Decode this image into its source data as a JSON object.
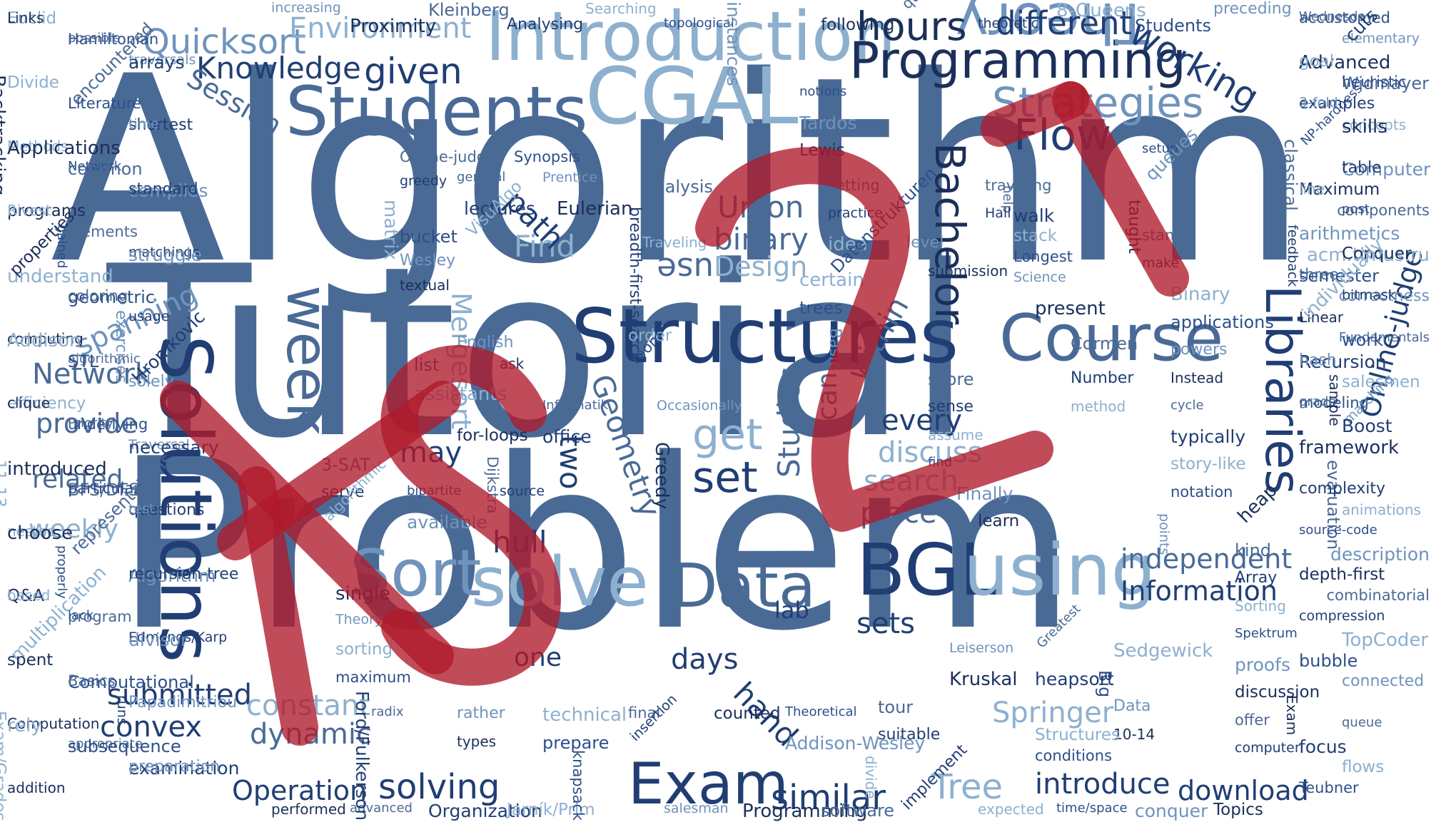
{
  "cloud": {
    "words": [
      "Algorithm",
      "Tutorial",
      "Problem",
      "Introduction",
      "CGAL",
      "Structures",
      "Students",
      "Programming",
      "Solutions",
      "Course",
      "Exam",
      "solve",
      "Sort",
      "Data",
      "BGL",
      "using",
      "Libraries",
      "Bachelor",
      "Theory",
      "Flow",
      "Strategies",
      "hours",
      "different",
      "working",
      "Quicksort",
      "Environment",
      "Knowledge",
      "given",
      "Session",
      "Union",
      "binary",
      "Design",
      "Find",
      "use",
      "path",
      "spanning",
      "Network",
      "provide",
      "related",
      "weekly",
      "week",
      "Mergesort",
      "Geometry",
      "two",
      "Studies",
      "can",
      "get",
      "set",
      "every",
      "discuss",
      "search",
      "place",
      "may",
      "hull",
      "submitted",
      "convex",
      "constant",
      "dynamic",
      "Operation",
      "solving",
      "similar",
      "Tree",
      "introduce",
      "download",
      "independent",
      "Information",
      "Springer",
      "lab",
      "sets",
      "days",
      "hand",
      "one",
      "Online-judge",
      "within",
      "Euclid",
      "Hamiltonian",
      "traversals",
      "Backtracking",
      "encountered",
      "shortest",
      "Methods",
      "Network",
      "compiles",
      "programs",
      "Elements",
      "matchings",
      "understand",
      "geometric",
      "exercises",
      "computing",
      "algorithmic",
      "Hromkovic",
      "efficiency",
      "underlying",
      "Traversal",
      "introduced",
      "BFS/DFS",
      "questions",
      "nested",
      "properly",
      "Algorithm",
      "Q&A",
      "program",
      "Edmonds/Karp",
      "multiplication",
      "Computational",
      "Papadimitriou",
      "Computation",
      "appropriate",
      "examination",
      "Exam/Grades",
      "accustomed",
      "elementary",
      "Advanced",
      "Widmayer",
      "examples",
      "concepts",
      "NP-hardness",
      "Computer",
      "Maximum",
      "components",
      "feedback",
      "acm.timus.ru",
      "semester",
      "correctness",
      "Linear",
      "Fundamentals",
      "Recursion",
      "salesmen",
      "modeling",
      "matching",
      "framework",
      "evaluation",
      "complexity",
      "animations",
      "source-code",
      "description",
      "depth-first",
      "combinatorial",
      "compression",
      "TopCoder",
      "bubble",
      "connected",
      "Exam",
      "queue",
      "focus",
      "flows",
      "Teubner",
      "increasing",
      "Proximity",
      "Kleinberg",
      "Analysing",
      "Searching",
      "topological",
      "instances",
      "following",
      "quadratic",
      "theoretic",
      "8-Queens",
      "Students",
      "preceding",
      "performed",
      "advanced",
      "Organization",
      "Jarník/Prim",
      "knapsack",
      "salesman",
      "Programming",
      "software",
      "implement",
      "expected",
      "time/space",
      "conquer",
      "Topics",
      "Online-judges",
      "greedy",
      "matrix",
      "bucket",
      "Wesley",
      "textual",
      "general",
      "lectures",
      "VisuAlgo",
      "Synopsis",
      "Prentice",
      "Eulerian",
      "Analysis",
      "breadth-first-search",
      "Traveling",
      "notions",
      "Tardos",
      "Lewis",
      "setting",
      "practice",
      "idea",
      "Datenstrukturen",
      "level",
      "submission",
      "help",
      "walk",
      "stack",
      "Longest",
      "Science",
      "present",
      "Cormen",
      "Number",
      "method",
      "setup",
      "queues",
      "taught",
      "stand",
      "make",
      "Binary",
      "applications",
      "powers",
      "Instead",
      "cycle",
      "typically",
      "story-like",
      "notation",
      "points",
      "heap",
      "kind",
      "Array",
      "Sorting",
      "Spektrum",
      "proofs",
      "discussion",
      "offer",
      "computer",
      "Sedgewick",
      "Big",
      "Data",
      "10-14",
      "Greatest",
      "heapsort",
      "Structures",
      "conditions",
      "Leiserson",
      "Kruskal",
      "tour",
      "suitable",
      "divide",
      "Theoretical",
      "Addison-Wesley",
      "counted",
      "final",
      "insertion",
      "technical",
      "prepare",
      "rather",
      "types",
      "radix",
      "Ford/Fulkerson",
      "sorting",
      "maximum",
      "Theory",
      "single",
      "3-SAT",
      "serve",
      "algorithmic",
      "bipartite",
      "available",
      "for-loops",
      "Dijkstra",
      "source",
      "assistants",
      "list",
      "English",
      "ask",
      "Informatik",
      "office",
      "order",
      "room",
      "Occasionally",
      "Greedy",
      "score",
      "sense",
      "assume",
      "find",
      "Finally",
      "learn",
      "traveling",
      "Hall",
      "certain",
      "trees",
      "Basic",
      "Links",
      "possible",
      "arrays",
      "Divide",
      "Literature",
      "time",
      "Applications",
      "common",
      "standard",
      "Rivest",
      "gained",
      "struggle",
      "properties",
      "coloring",
      "usage",
      "Addison",
      "STL",
      "solely",
      "clique",
      "Priority",
      "necessary",
      "11-13",
      "particular",
      "test",
      "choose",
      "representations",
      "recursion-tree",
      "based",
      "lack",
      "divisor",
      "spent",
      "Basics",
      "runs",
      "rely",
      "subsequence",
      "preparation",
      "addition",
      "Wednesday",
      "cuts",
      "goal",
      "heuristic",
      "3-fold",
      "skills",
      "classical",
      "table",
      "line",
      "post",
      "arithmetics",
      "Conquer",
      "three",
      "bitmask",
      "individually",
      "work",
      "hash",
      "sample",
      "grade",
      "Boost"
    ],
    "colors": [
      "#4a6a96",
      "#203e74",
      "#8db0cf",
      "#2d4f8a",
      "#6f93bd",
      "#1b2f5a"
    ]
  },
  "logo": {
    "text": "KS21",
    "color": "#b01a2a"
  }
}
